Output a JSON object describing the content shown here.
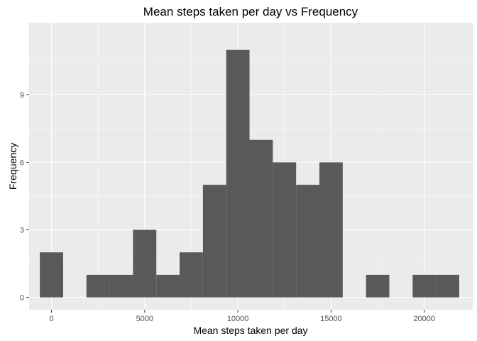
{
  "chart_data": {
    "type": "bar",
    "title": "Mean steps taken per day vs Frequency",
    "xlabel": "Mean steps taken per day",
    "ylabel": "Frequency",
    "xlim": [
      -1200,
      22600
    ],
    "ylim": [
      -0.55,
      12.2
    ],
    "x_ticks": [
      0,
      5000,
      10000,
      15000,
      20000
    ],
    "x_tick_labels": [
      "0",
      "5000",
      "10000",
      "15000",
      "20000"
    ],
    "y_ticks": [
      0,
      3,
      6,
      9
    ],
    "y_tick_labels": [
      "0",
      "3",
      "6",
      "9"
    ],
    "bin_width": 1250,
    "bins": [
      {
        "x0": -625,
        "x1": 625,
        "count": 2
      },
      {
        "x0": 625,
        "x1": 1875,
        "count": 0
      },
      {
        "x0": 1875,
        "x1": 3125,
        "count": 1
      },
      {
        "x0": 3125,
        "x1": 4375,
        "count": 1
      },
      {
        "x0": 4375,
        "x1": 5625,
        "count": 3
      },
      {
        "x0": 5625,
        "x1": 6875,
        "count": 1
      },
      {
        "x0": 6875,
        "x1": 8125,
        "count": 2
      },
      {
        "x0": 8125,
        "x1": 9375,
        "count": 5
      },
      {
        "x0": 9375,
        "x1": 10625,
        "count": 11
      },
      {
        "x0": 10625,
        "x1": 11875,
        "count": 7
      },
      {
        "x0": 11875,
        "x1": 13125,
        "count": 6
      },
      {
        "x0": 13125,
        "x1": 14375,
        "count": 5
      },
      {
        "x0": 14375,
        "x1": 15625,
        "count": 6
      },
      {
        "x0": 15625,
        "x1": 16875,
        "count": 0
      },
      {
        "x0": 16875,
        "x1": 18125,
        "count": 1
      },
      {
        "x0": 18125,
        "x1": 19375,
        "count": 0
      },
      {
        "x0": 19375,
        "x1": 20625,
        "count": 1
      },
      {
        "x0": 20625,
        "x1": 21875,
        "count": 1
      }
    ],
    "grid": true,
    "legend": "none",
    "colors": {
      "panel": "#ebebeb",
      "grid": "#ffffff",
      "bar": "#595959"
    }
  }
}
